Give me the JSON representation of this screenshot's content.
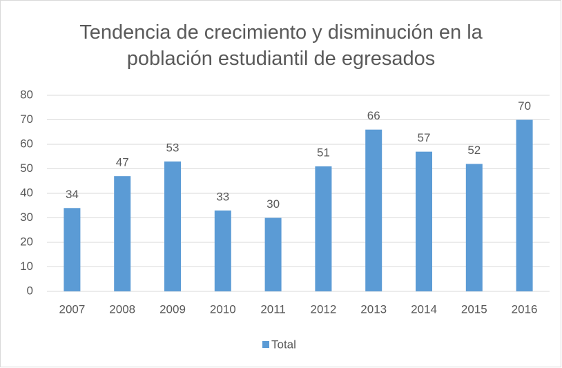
{
  "chart_data": {
    "type": "bar",
    "title": "Tendencia de crecimiento y disminución en la población estudiantil de egresados",
    "categories": [
      "2007",
      "2008",
      "2009",
      "2010",
      "2011",
      "2012",
      "2013",
      "2014",
      "2015",
      "2016"
    ],
    "series": [
      {
        "name": "Total",
        "color": "#5b9bd5",
        "values": [
          34,
          47,
          53,
          33,
          30,
          51,
          66,
          57,
          52,
          70
        ]
      }
    ],
    "ylim": [
      0,
      80
    ],
    "yticks": [
      0,
      10,
      20,
      30,
      40,
      50,
      60,
      70,
      80
    ],
    "grid": true,
    "data_labels": true,
    "legend": "bottom"
  }
}
